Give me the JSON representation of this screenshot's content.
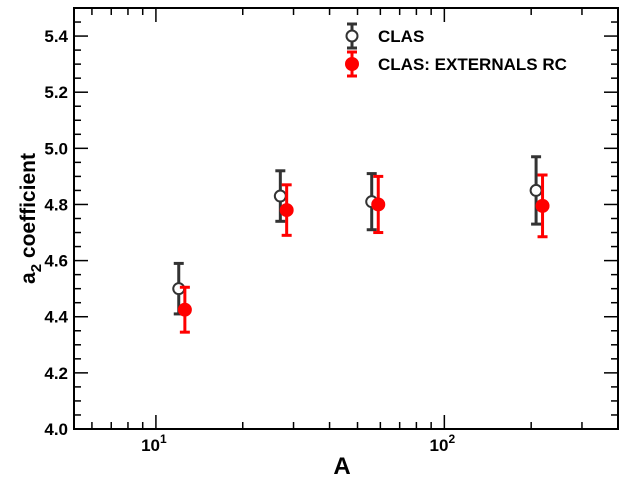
{
  "chart_data": {
    "type": "scatter",
    "xlabel": "A",
    "ylabel_main": "a",
    "ylabel_sub": "2",
    "ylabel_rest": " coefficient",
    "xscale": "log",
    "xlim": [
      5.2,
      400
    ],
    "ylim": [
      4.0,
      5.5
    ],
    "yticks": [
      "4.0",
      "4.2",
      "4.4",
      "4.6",
      "4.8",
      "5.0",
      "5.2",
      "5.4"
    ],
    "xticks": [
      {
        "value": 10,
        "base": "10",
        "exp": "1"
      },
      {
        "value": 100,
        "base": "10",
        "exp": "2"
      }
    ],
    "grid": false,
    "legend_position": "top-right",
    "series": [
      {
        "name": "CLAS",
        "marker": "open-circle",
        "color": "#333333",
        "points": [
          {
            "x": 12,
            "y": 4.5,
            "err": 0.09
          },
          {
            "x": 27,
            "y": 4.83,
            "err": 0.09
          },
          {
            "x": 56,
            "y": 4.81,
            "err": 0.1
          },
          {
            "x": 208,
            "y": 4.85,
            "err": 0.12
          }
        ]
      },
      {
        "name": "CLAS: EXTERNALS RC",
        "marker": "filled-circle",
        "color": "#ff0000",
        "points": [
          {
            "x": 12.6,
            "y": 4.425,
            "err": 0.08
          },
          {
            "x": 28.4,
            "y": 4.78,
            "err": 0.09
          },
          {
            "x": 59,
            "y": 4.8,
            "err": 0.1
          },
          {
            "x": 219,
            "y": 4.795,
            "err": 0.11
          }
        ]
      }
    ]
  }
}
